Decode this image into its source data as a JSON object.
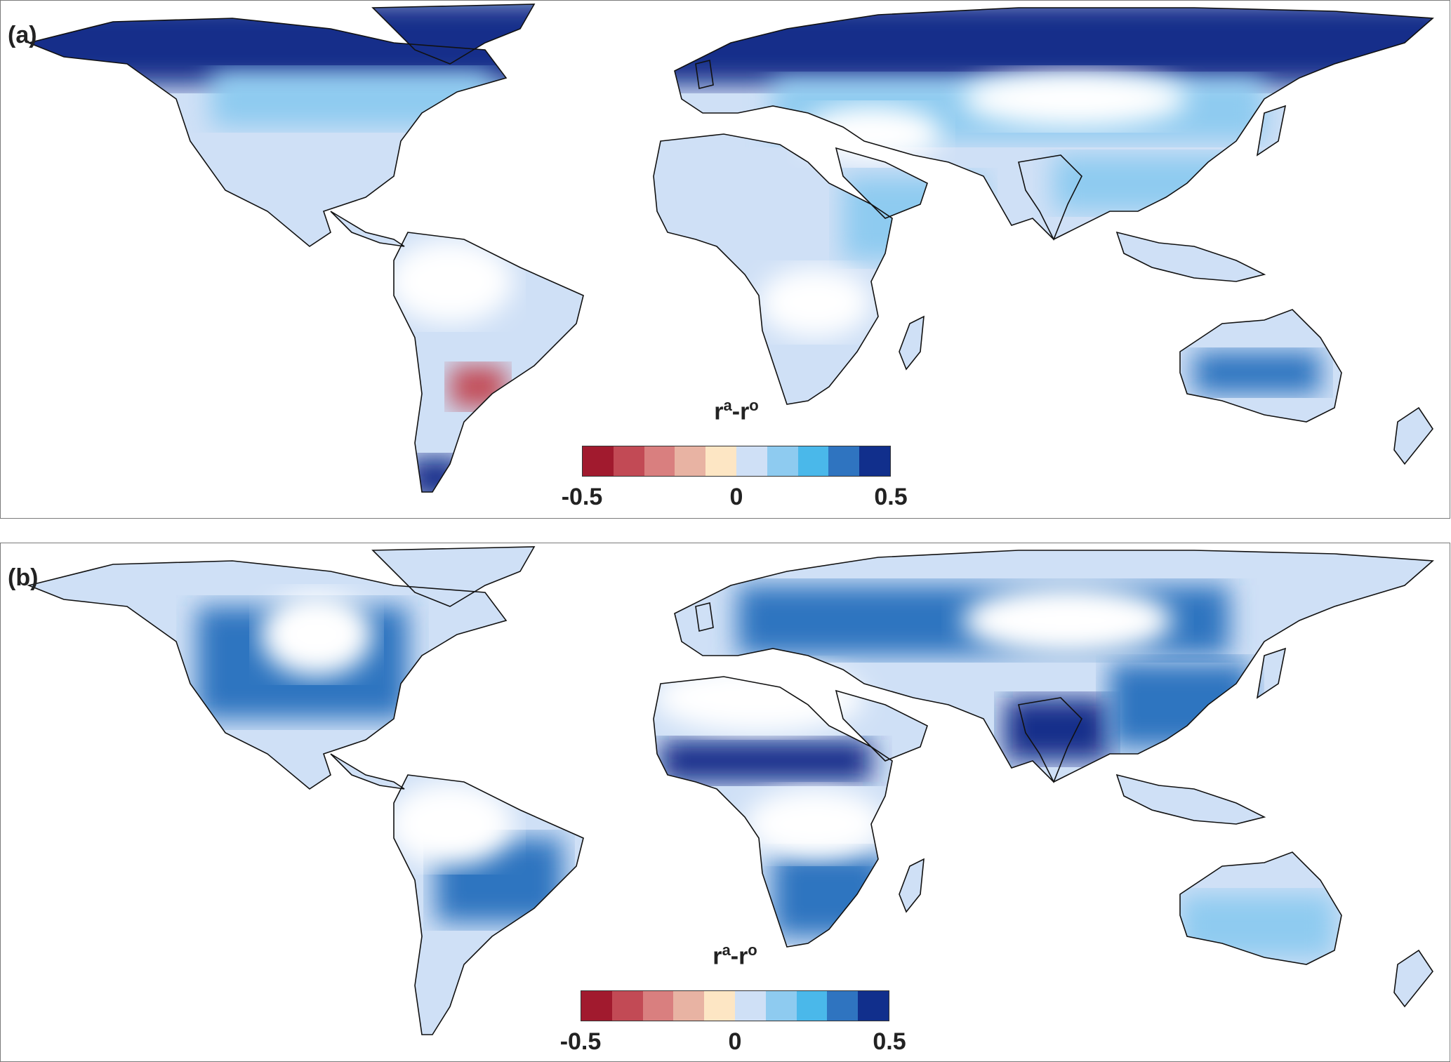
{
  "panels": [
    {
      "id": "a",
      "label": "(a)",
      "colorbar": {
        "title_base_r1": "r",
        "title_sup1": "a",
        "title_dash": "-",
        "title_base_r2": "r",
        "title_sup2": "o",
        "ticks": [
          "-0.5",
          "0",
          "0.5"
        ]
      }
    },
    {
      "id": "b",
      "label": "(b)",
      "colorbar": {
        "title_base_r1": "r",
        "title_sup1": "a",
        "title_dash": "-",
        "title_base_r2": "r",
        "title_sup2": "o",
        "ticks": [
          "-0.5",
          "0",
          "0.5"
        ]
      }
    }
  ],
  "colorbar_range": [
    -0.5,
    0.5
  ],
  "colorbar_colors": [
    "#a11a2e",
    "#c24a55",
    "#d97f7f",
    "#e8b3a3",
    "#fde6c4",
    "#cfe0f6",
    "#8ecbf0",
    "#4ab8ea",
    "#2f74c0",
    "#112f8c"
  ],
  "map_colors": {
    "coast": "#111111",
    "deep_blue": "#132f8a",
    "mid_blue": "#2f74c0",
    "light_blue": "#8ecbf0",
    "pale_blue": "#cfe0f6",
    "red": "#c24a55"
  }
}
